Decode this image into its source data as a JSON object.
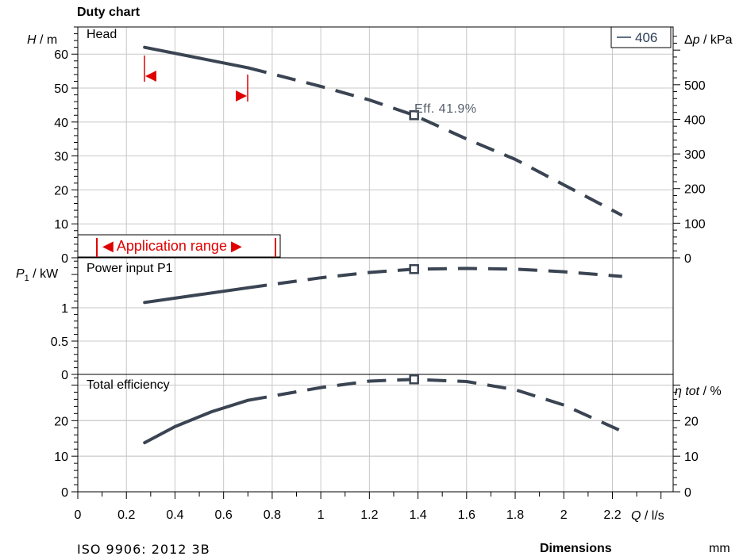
{
  "chart_data": {
    "title": "Duty chart",
    "type": "line",
    "x_axis": {
      "label_sym": "Q",
      "label_unit": "l/s",
      "range": [
        0,
        2.45
      ],
      "ticks": [
        0,
        0.2,
        0.4,
        0.6,
        0.8,
        1,
        1.2,
        1.4,
        1.6,
        1.8,
        2,
        2.2
      ],
      "tick_labels": [
        "0",
        "0.2",
        "0.4",
        "0.6",
        "0.8",
        "1",
        "1.2",
        "1.4",
        "1.6",
        "1.8",
        "2",
        "2.2"
      ]
    },
    "legend": {
      "label": "406",
      "position": "top-right"
    },
    "grid": true,
    "panels": {
      "head": {
        "name": "Head",
        "y_sym": "H",
        "y_unit": "m",
        "ylim": [
          0,
          68
        ],
        "y_ticks": [
          0,
          10,
          20,
          30,
          40,
          50,
          60
        ],
        "y2_sym": "Δp",
        "y2_unit": "kPa",
        "y2_ticks": [
          0,
          100,
          200,
          300,
          400,
          500
        ],
        "solid": {
          "x": [
            0.275,
            0.7
          ],
          "y": [
            62,
            56
          ]
        },
        "dashed": {
          "x": [
            0.7,
            1,
            1.2,
            1.384,
            1.6,
            1.8,
            2,
            2.24
          ],
          "y": [
            56,
            50.5,
            46.5,
            42,
            35,
            29,
            21.5,
            12.5
          ]
        },
        "duty_point": {
          "x": 1.384,
          "y": 42,
          "label": "Eff. 41.9%"
        },
        "application_range": {
          "label": "Application range",
          "min": 0.275,
          "max": 0.7
        }
      },
      "power": {
        "name": "Power input P1",
        "y_sym": "P",
        "y_sub": "1",
        "y_unit": "kW",
        "ylim": [
          0,
          1.75
        ],
        "y_ticks": [
          0,
          0.5,
          1
        ],
        "y_tick_labels": [
          "0",
          "0.5",
          "1"
        ],
        "solid": {
          "x": [
            0.275,
            0.7
          ],
          "y": [
            1.08,
            1.3
          ]
        },
        "dashed": {
          "x": [
            0.7,
            1,
            1.2,
            1.384,
            1.6,
            1.8,
            2,
            2.24
          ],
          "y": [
            1.3,
            1.45,
            1.53,
            1.58,
            1.59,
            1.58,
            1.54,
            1.47
          ]
        },
        "duty_point": {
          "x": 1.384,
          "y": 1.58
        }
      },
      "efficiency": {
        "name": "Total efficiency",
        "y_sym": "η tot",
        "y_unit": "%",
        "ylim": [
          0,
          33
        ],
        "y_ticks": [
          0,
          10,
          20
        ],
        "solid": {
          "x": [
            0.275,
            0.4,
            0.55,
            0.7
          ],
          "y": [
            13.8,
            18.3,
            22.5,
            25.7
          ]
        },
        "dashed": {
          "x": [
            0.7,
            1,
            1.2,
            1.384,
            1.6,
            1.8,
            2,
            2.24
          ],
          "y": [
            25.7,
            29.3,
            31.1,
            31.6,
            31,
            28.7,
            24.4,
            17
          ]
        },
        "duty_point": {
          "x": 1.384,
          "y": 31.6
        }
      }
    }
  },
  "footer": {
    "standard": "ISO 9906: 2012 3B",
    "dimensions_label": "Dimensions",
    "dimensions_unit": "mm"
  }
}
